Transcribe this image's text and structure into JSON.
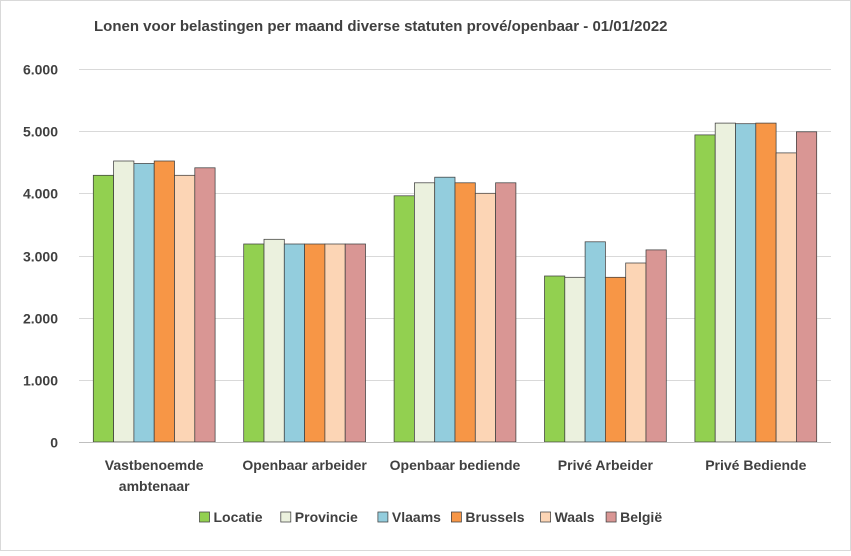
{
  "chart_data": {
    "type": "bar",
    "title": "Lonen voor belastingen per maand diverse statuten prové/openbaar - 01/01/2022",
    "xlabel": "",
    "ylabel": "",
    "ylim": [
      0,
      6000
    ],
    "y_ticks": [
      0,
      1000,
      2000,
      3000,
      4000,
      5000,
      6000
    ],
    "y_tick_labels": [
      "0",
      "1.000",
      "2.000",
      "3.000",
      "4.000",
      "5.000",
      "6.000"
    ],
    "grid": true,
    "legend_position": "bottom",
    "categories": [
      [
        "Vastbenoemde",
        "ambtenaar"
      ],
      [
        "Openbaar arbeider"
      ],
      [
        "Openbaar bediende"
      ],
      [
        "Privé Arbeider"
      ],
      [
        "Privé Bediende"
      ]
    ],
    "series": [
      {
        "name": "Locatie",
        "color": "#92d050",
        "values": [
          4290,
          3185,
          3960,
          2670,
          4940
        ]
      },
      {
        "name": "Provincie",
        "color": "#ebf1de",
        "values": [
          4520,
          3260,
          4170,
          2650,
          5130
        ]
      },
      {
        "name": "Vlaams",
        "color": "#93cddd",
        "values": [
          4480,
          3185,
          4260,
          3220,
          5120
        ]
      },
      {
        "name": "Brussels",
        "color": "#f79646",
        "values": [
          4520,
          3185,
          4170,
          2650,
          5130
        ]
      },
      {
        "name": "Waals",
        "color": "#fcd5b5",
        "values": [
          4290,
          3185,
          4000,
          2880,
          4650
        ]
      },
      {
        "name": "België",
        "color": "#d99694",
        "values": [
          4410,
          3185,
          4170,
          3090,
          4990
        ]
      }
    ]
  }
}
